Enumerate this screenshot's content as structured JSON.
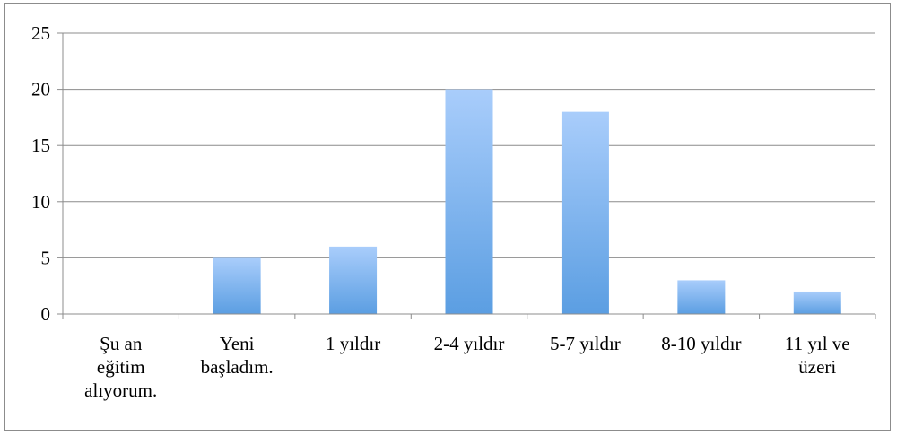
{
  "chart_data": {
    "type": "bar",
    "title": "",
    "xlabel": "",
    "ylabel": "",
    "categories": [
      [
        "Şu an",
        "eğitim",
        "alıyorum."
      ],
      [
        "Yeni",
        "başladım."
      ],
      [
        "1 yıldır"
      ],
      [
        "2-4 yıldır"
      ],
      [
        "5-7 yıldır"
      ],
      [
        "8-10 yıldır"
      ],
      [
        "11 yıl ve",
        "üzeri"
      ]
    ],
    "values": [
      0,
      5,
      6,
      20,
      18,
      3,
      2
    ],
    "ylim": [
      0,
      25
    ],
    "yticks": [
      "0",
      "5",
      "10",
      "15",
      "20",
      "25"
    ],
    "grid": true,
    "legend": "none",
    "colors": {
      "bar_top": "#a9cdfb",
      "bar_bottom": "#5b9ee2",
      "grid": "#8c8c8c",
      "axis": "#8c8c8c"
    }
  }
}
